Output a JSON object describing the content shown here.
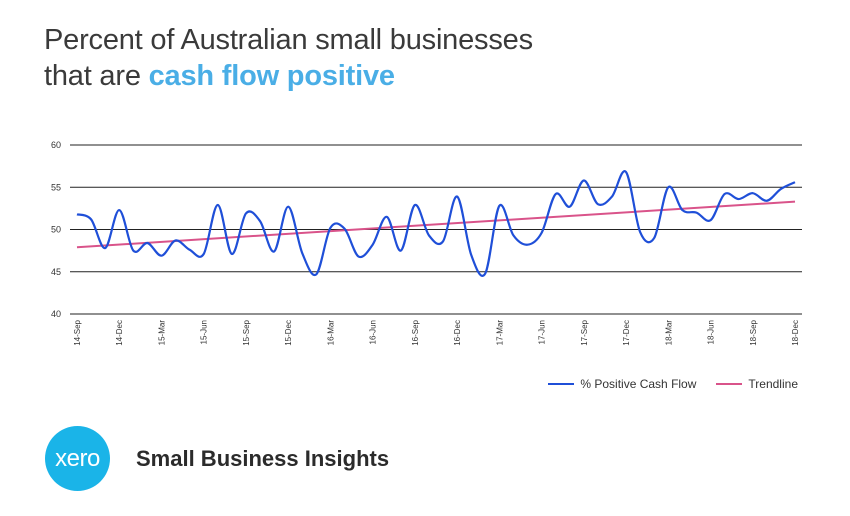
{
  "header": {
    "title_line1": "Percent of Australian small businesses",
    "title_line2_prefix": "that are ",
    "title_line2_accent": "cash flow positive"
  },
  "colors": {
    "accent": "#4aaee6",
    "series": "#1f4fd8",
    "trend": "#d9538a",
    "logo": "#1ab4e8"
  },
  "chart_data": {
    "type": "line",
    "ylim": [
      40,
      60
    ],
    "yticks": [
      40,
      45,
      50,
      55,
      60
    ],
    "grid": true,
    "legend_position": "bottom-right",
    "x_ticks": [
      "14-Sep",
      "14-Dec",
      "15-Mar",
      "15-Jun",
      "15-Sep",
      "15-Dec",
      "16-Mar",
      "16-Jun",
      "16-Sep",
      "16-Dec",
      "17-Mar",
      "17-Jun",
      "17-Sep",
      "17-Dec",
      "18-Mar",
      "18-Jun",
      "18-Sep",
      "18-Dec"
    ],
    "series": [
      {
        "name": "% Positive Cash Flow",
        "values": [
          51.8,
          51.2,
          47.8,
          52.3,
          47.5,
          48.4,
          46.9,
          48.7,
          47.6,
          47.1,
          52.9,
          47.1,
          51.9,
          51.0,
          47.4,
          52.7,
          47.2,
          44.7,
          50.2,
          50.1,
          46.8,
          48.2,
          51.5,
          47.5,
          52.9,
          49.3,
          48.6,
          53.9,
          47.0,
          44.8,
          52.8,
          49.3,
          48.2,
          49.6,
          54.2,
          52.7,
          55.8,
          53.0,
          53.9,
          56.8,
          49.7,
          49.0,
          55.0,
          52.3,
          52.0,
          51.1,
          54.2,
          53.6,
          54.3,
          53.4,
          54.8,
          55.6
        ]
      },
      {
        "name": "Trendline",
        "start": 47.9,
        "end": 53.3
      }
    ]
  },
  "legend": {
    "series_label": "% Positive Cash Flow",
    "trend_label": "Trendline"
  },
  "footer": {
    "logo_text": "xero",
    "brand": "Small Business Insights"
  }
}
